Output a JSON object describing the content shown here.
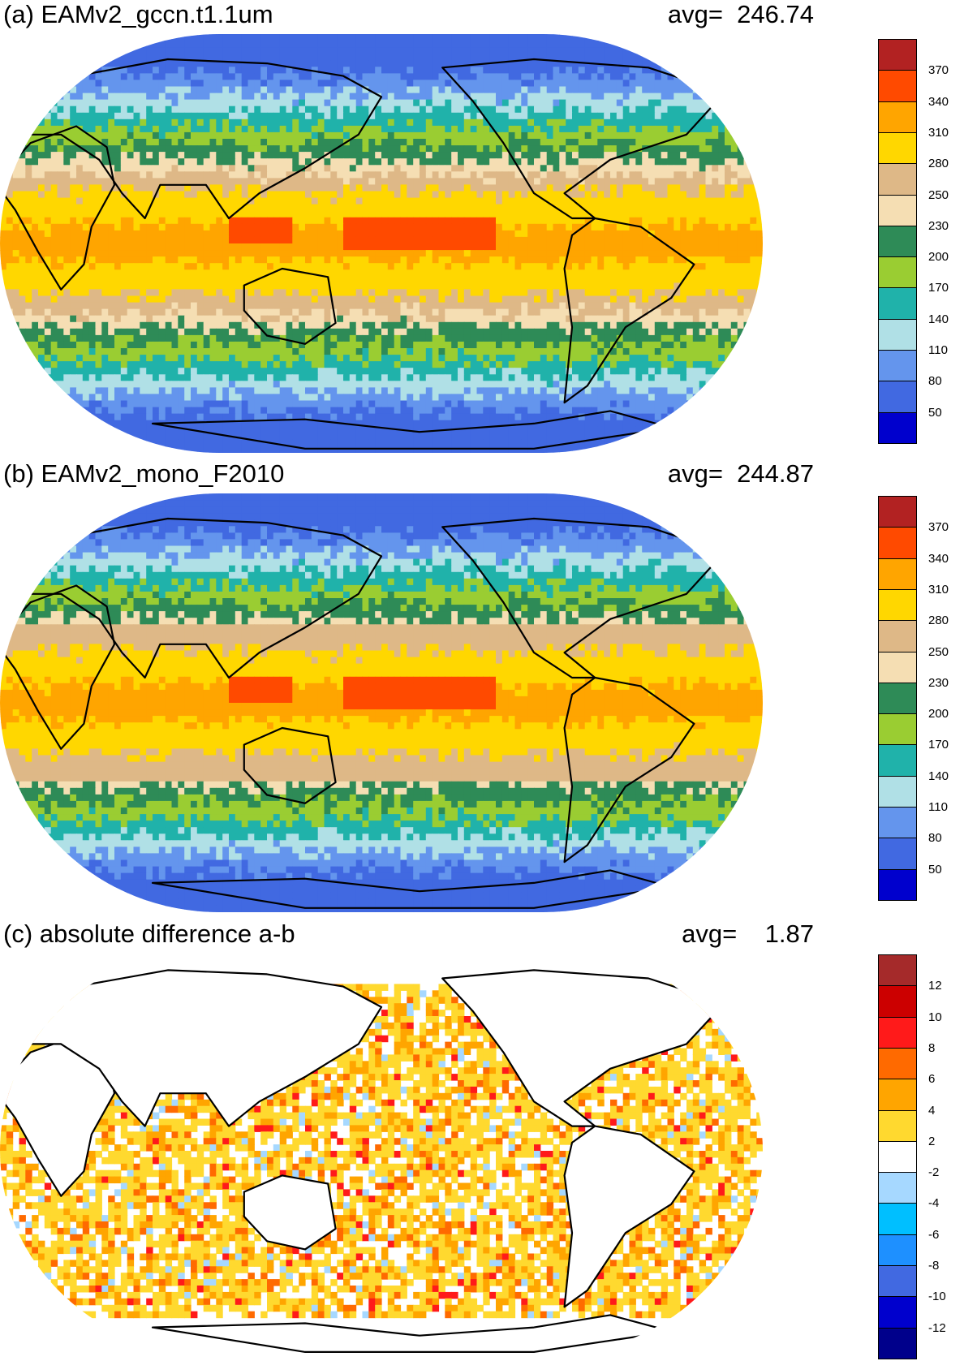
{
  "panels": [
    {
      "title": "(a) EAMv2_gccn.t1.1um",
      "avg_label": "avg=  246.74",
      "colorbar": {
        "labels": [
          "370",
          "340",
          "310",
          "280",
          "250",
          "230",
          "200",
          "170",
          "140",
          "110",
          "80",
          "50"
        ],
        "colors": [
          "#b22222",
          "#ff4a00",
          "#ffa500",
          "#ffd700",
          "#deb887",
          "#f5deb3",
          "#2e8b57",
          "#9acd32",
          "#20b2aa",
          "#b0e0e6",
          "#6495ed",
          "#4169e1",
          "#0000cd"
        ]
      }
    },
    {
      "title": "(b) EAMv2_mono_F2010",
      "avg_label": "avg=  244.87",
      "colorbar": {
        "labels": [
          "370",
          "340",
          "310",
          "280",
          "250",
          "230",
          "200",
          "170",
          "140",
          "110",
          "80",
          "50"
        ],
        "colors": [
          "#b22222",
          "#ff4a00",
          "#ffa500",
          "#ffd700",
          "#deb887",
          "#f5deb3",
          "#2e8b57",
          "#9acd32",
          "#20b2aa",
          "#b0e0e6",
          "#6495ed",
          "#4169e1",
          "#0000cd"
        ]
      }
    },
    {
      "title": "(c) absolute difference a-b",
      "avg_label": "avg=    1.87",
      "colorbar": {
        "labels": [
          "12",
          "10",
          "8",
          "6",
          "4",
          "2",
          "-2",
          "-4",
          "-6",
          "-8",
          "-10",
          "-12"
        ],
        "colors": [
          "#a52a2a",
          "#cc0000",
          "#ff1a1a",
          "#ff6a00",
          "#ffa500",
          "#ffd92f",
          "#ffffff",
          "#a6d8ff",
          "#00bfff",
          "#1e90ff",
          "#4169e1",
          "#0000cd",
          "#00008b"
        ]
      }
    }
  ]
}
